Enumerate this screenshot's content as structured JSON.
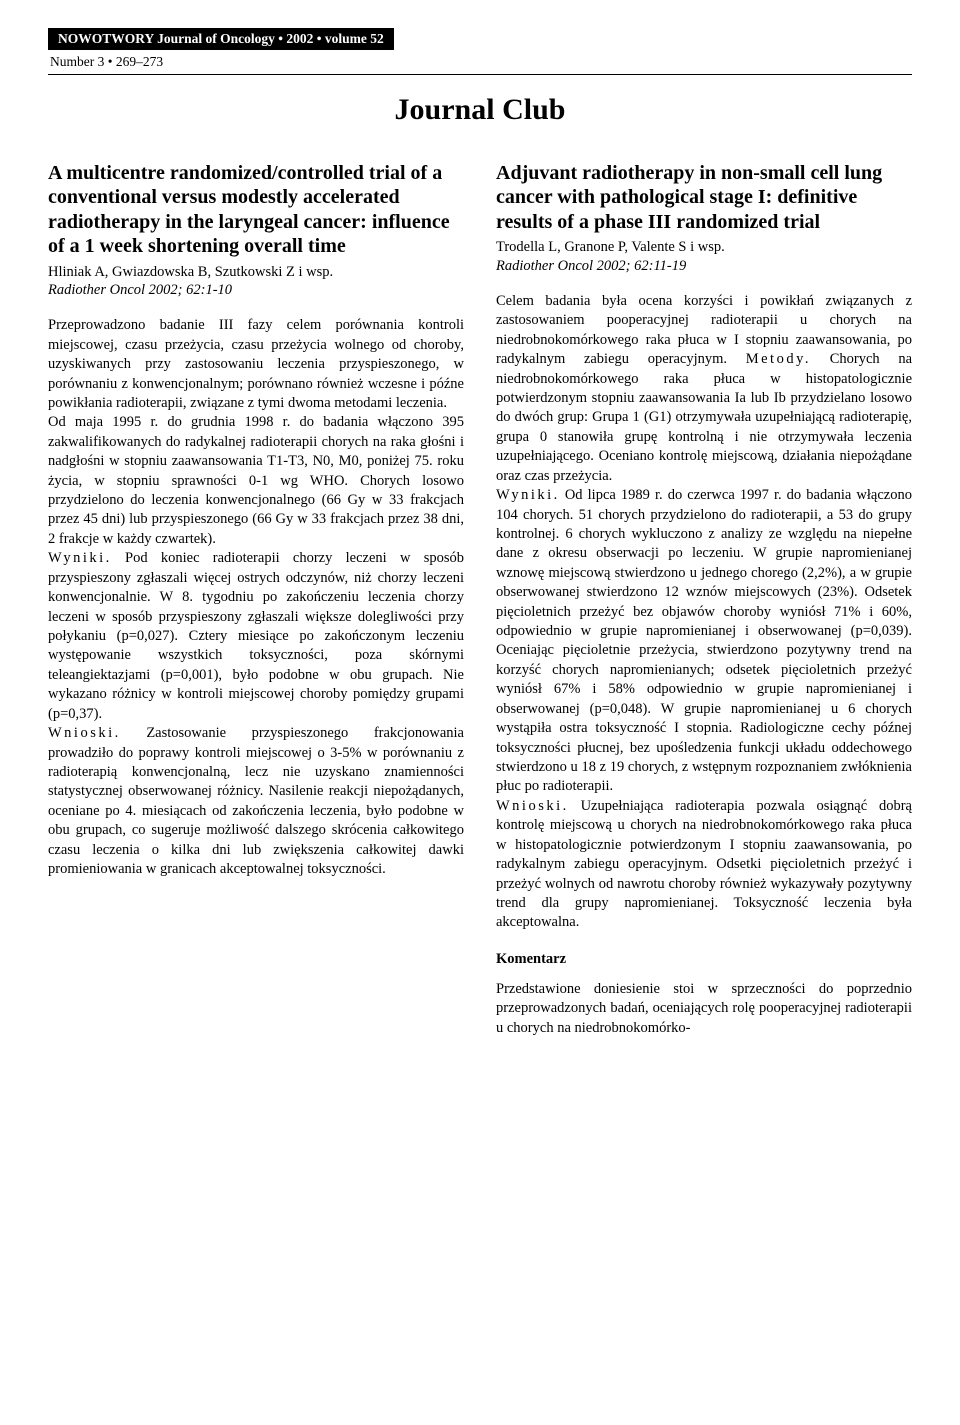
{
  "banner": "NOWOTWORY Journal of Oncology • 2002 • volume 52",
  "issue": "Number 3 • 269–273",
  "journal_club": "Journal Club",
  "left": {
    "title": "A multicentre randomized/controlled trial of a conventional versus modestly accelerated radiotherapy in the laryngeal cancer: influence of a 1 week shortening overall time",
    "authors": "Hliniak A, Gwiazdowska B, Szutkowski Z i wsp.",
    "citation": "Radiother Oncol 2002; 62:1-10",
    "p1": "Przeprowadzono badanie III fazy celem porównania kontroli miejscowej, czasu przeżycia, czasu przeżycia wolnego od choroby, uzyskiwanych przy zastosowaniu leczenia przyspieszonego, w porównaniu z konwencjonalnym; porównano również wczesne i późne powikłania radioterapii, związane z tymi dwoma metodami leczenia.",
    "p2": "Od maja 1995 r. do grudnia 1998 r. do badania włączono 395 zakwalifikowanych do radykalnej radioterapii chorych na raka głośni i nadgłośni w stopniu zaawansowania T1-T3, N0, M0, poniżej 75. roku życia, w stopniu sprawności 0-1 wg WHO. Chorych losowo przydzielono do leczenia konwencjonalnego (66 Gy w 33 frakcjach przez 45 dni) lub przyspieszonego (66 Gy w 33 frakcjach przez 38 dni, 2 frakcje w każdy czwartek).",
    "p3_label": "Wyniki.",
    "p3": " Pod koniec radioterapii chorzy leczeni w sposób przyspieszony zgłaszali więcej ostrych odczynów, niż chorzy leczeni konwencjonalnie. W 8. tygodniu po zakończeniu leczenia chorzy leczeni w sposób przyspieszony zgłaszali większe dolegliwości przy połykaniu (p=0,027). Cztery miesiące po zakończonym leczeniu występowanie wszystkich toksyczności, poza skórnymi teleangiektazjami (p=0,001), było podobne w obu grupach. Nie wykazano różnicy w kontroli miejscowej choroby pomiędzy grupami (p=0,37).",
    "p4_label": "Wnioski.",
    "p4": " Zastosowanie przyspieszonego frakcjonowania prowadziło do poprawy kontroli miejscowej o 3-5% w porównaniu z radioterapią konwencjonalną, lecz nie uzyskano znamienności statystycznej obserwowanej różnicy. Nasilenie reakcji niepożądanych, oceniane po 4. miesiącach od zakończenia leczenia, było podobne w obu grupach, co sugeruje możliwość dalszego skrócenia całkowitego czasu leczenia o kilka dni lub zwiększenia całkowitej dawki promieniowania w granicach akceptowalnej toksyczności."
  },
  "right": {
    "title": "Adjuvant radiotherapy in non-small cell lung cancer with pathological stage I: definitive results of a phase III randomized trial",
    "authors": "Trodella L, Granone P, Valente S i wsp.",
    "citation": "Radiother Oncol 2002; 62:11-19",
    "p1": "Celem badania była ocena korzyści i powikłań związanych z zastosowaniem pooperacyjnej radioterapii u chorych na niedrobnokomórkowego raka płuca w I stopniu zaawansowania, po radykalnym zabiegu operacyjnym.",
    "p2_label": "Metody.",
    "p2": " Chorych na niedrobnokomórkowego raka płuca w histopatologicznie potwierdzonym stopniu zaawansowania Ia lub Ib przydzielano losowo do dwóch grup: Grupa 1 (G1) otrzymywała uzupełniającą radioterapię, grupa 0 stanowiła grupę kontrolną i nie otrzymywała leczenia uzupełniającego. Oceniano kontrolę miejscową, działania niepożądane oraz czas przeżycia.",
    "p3_label": "Wyniki.",
    "p3": " Od lipca 1989 r. do czerwca 1997 r. do badania włączono 104 chorych. 51 chorych przydzielono do radioterapii, a 53 do grupy kontrolnej. 6 chorych wykluczono z analizy ze względu na niepełne dane z okresu obserwacji po leczeniu. W grupie napromienianej wznowę miejscową stwierdzono u jednego chorego (2,2%), a w grupie obserwowanej stwierdzono 12 wznów miejscowych (23%). Odsetek pięcioletnich przeżyć bez objawów choroby wyniósł 71% i 60%, odpowiednio w grupie napromienianej i obserwowanej (p=0,039). Oceniając pięcioletnie przeżycia, stwierdzono pozytywny trend na korzyść chorych napromienianych; odsetek pięcioletnich przeżyć wyniósł 67% i 58% odpowiednio w grupie napromienianej i obserwowanej (p=0,048). W grupie napromienianej u 6 chorych wystąpiła ostra toksyczność I stopnia. Radiologiczne cechy późnej toksyczności płucnej, bez upośledzenia funkcji układu oddechowego stwierdzono u 18 z 19 chorych, z wstępnym rozpoznaniem zwłóknienia płuc po radioterapii.",
    "p4_label": "Wnioski.",
    "p4": " Uzupełniająca radioterapia pozwala osiągnąć dobrą kontrolę miejscową u chorych na niedrobnokomórkowego raka płuca w histopatologicznie potwierdzonym I stopniu zaawansowania, po radykalnym zabiegu operacyjnym. Odsetki pięcioletnich przeżyć i przeżyć wolnych od nawrotu choroby również wykazywały pozytywny trend dla grupy napromienianej. Toksyczność leczenia była akceptowalna.",
    "komentarz_heading": "Komentarz",
    "komentarz": "Przedstawione doniesienie stoi w sprzeczności do poprzednio przeprowadzonych badań, oceniających rolę pooperacyjnej radioterapii u chorych na niedrobnokomórko-"
  }
}
